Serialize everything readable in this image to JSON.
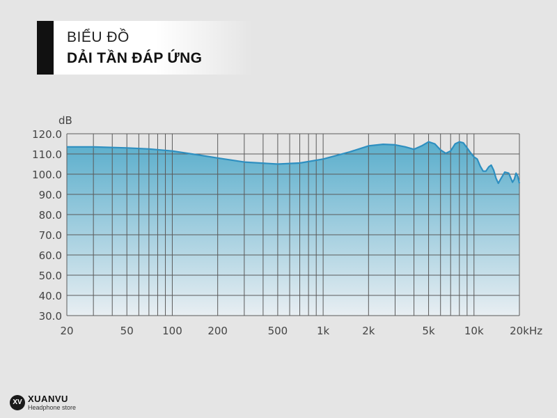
{
  "header": {
    "line1": "BIỂU ĐỒ",
    "line2": "DẢI TẦN ĐÁP ỨNG"
  },
  "logo": {
    "badge": "XV",
    "name": "XUANVU",
    "subtitle": "Headphone store"
  },
  "colors": {
    "background": "#e5e5e5",
    "curve": "#2e8fc0",
    "fill_top": "#5aaecc",
    "fill_bottom": "#e8eef2",
    "grid": "#555555"
  },
  "chart_data": {
    "type": "area",
    "title": "",
    "xlabel": "Hz",
    "ylabel": "dB",
    "x_scale": "log",
    "xlim": [
      20,
      20000
    ],
    "ylim": [
      30,
      120
    ],
    "grid": true,
    "x_ticks": [
      {
        "value": 20,
        "label": "20"
      },
      {
        "value": 50,
        "label": "50"
      },
      {
        "value": 100,
        "label": "100"
      },
      {
        "value": 200,
        "label": "200"
      },
      {
        "value": 500,
        "label": "500"
      },
      {
        "value": 1000,
        "label": "1k"
      },
      {
        "value": 2000,
        "label": "2k"
      },
      {
        "value": 5000,
        "label": "5k"
      },
      {
        "value": 10000,
        "label": "10k"
      },
      {
        "value": 20000,
        "label": "20k"
      }
    ],
    "y_ticks": [
      {
        "value": 120,
        "label": "120.0"
      },
      {
        "value": 110,
        "label": "110.0"
      },
      {
        "value": 100,
        "label": "100.0"
      },
      {
        "value": 90,
        "label": "90.0"
      },
      {
        "value": 80,
        "label": "80.0"
      },
      {
        "value": 70,
        "label": "70.0"
      },
      {
        "value": 60,
        "label": "60.0"
      },
      {
        "value": 50,
        "label": "50.0"
      },
      {
        "value": 40,
        "label": "40.0"
      },
      {
        "value": 30,
        "label": "30.0"
      }
    ],
    "minor_x_gridlines": [
      30,
      40,
      60,
      70,
      80,
      90,
      300,
      400,
      600,
      700,
      800,
      900,
      3000,
      4000,
      6000,
      7000,
      8000,
      9000
    ],
    "series": [
      {
        "values": [
          [
            20,
            113.5
          ],
          [
            30,
            113.5
          ],
          [
            50,
            113.0
          ],
          [
            70,
            112.5
          ],
          [
            100,
            111.5
          ],
          [
            150,
            109.5
          ],
          [
            200,
            108.0
          ],
          [
            300,
            106.0
          ],
          [
            500,
            105.0
          ],
          [
            700,
            105.5
          ],
          [
            1000,
            107.5
          ],
          [
            1500,
            111.0
          ],
          [
            2000,
            114.0
          ],
          [
            2500,
            114.8
          ],
          [
            3000,
            114.5
          ],
          [
            3500,
            113.5
          ],
          [
            4000,
            112.3
          ],
          [
            4500,
            114.0
          ],
          [
            5000,
            116.0
          ],
          [
            5500,
            115.0
          ],
          [
            6000,
            112.0
          ],
          [
            6500,
            110.3
          ],
          [
            7000,
            111.5
          ],
          [
            7500,
            115.0
          ],
          [
            8000,
            116.0
          ],
          [
            8500,
            115.5
          ],
          [
            9000,
            113.0
          ],
          [
            9500,
            110.5
          ],
          [
            10000,
            108.5
          ],
          [
            10500,
            107.5
          ],
          [
            11000,
            104.0
          ],
          [
            11500,
            101.5
          ],
          [
            12000,
            101.5
          ],
          [
            12500,
            103.5
          ],
          [
            13000,
            104.5
          ],
          [
            13500,
            102.0
          ],
          [
            14000,
            98.0
          ],
          [
            14500,
            95.5
          ],
          [
            15000,
            97.5
          ],
          [
            16000,
            101.0
          ],
          [
            17000,
            100.5
          ],
          [
            18000,
            96.0
          ],
          [
            18500,
            97.5
          ],
          [
            19000,
            100.5
          ],
          [
            19500,
            99.0
          ],
          [
            20000,
            95.5
          ]
        ]
      }
    ]
  }
}
